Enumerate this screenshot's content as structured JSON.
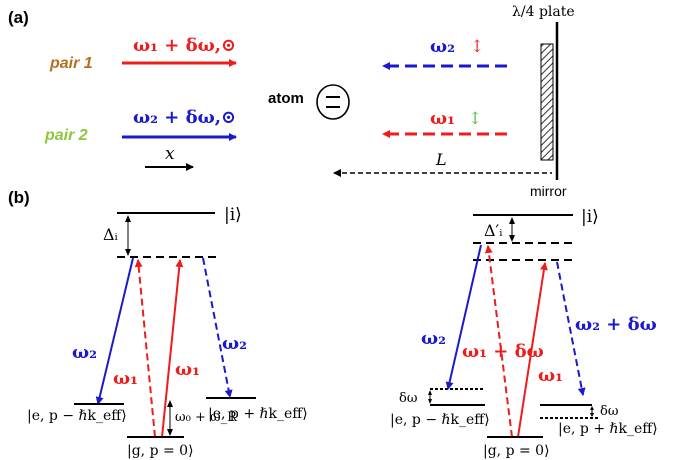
{
  "panel_a": {
    "label": "(a)",
    "pair1": {
      "label": "pair 1",
      "beam": "ω₁ + δω,⊙"
    },
    "pair2": {
      "label": "pair 2",
      "beam": "ω₂ + δω,⊙"
    },
    "x_axis": "x",
    "atom_label": "atom",
    "reflected_top": {
      "beam": "ω₂",
      "pol": "↕"
    },
    "reflected_bottom": {
      "beam": "ω₁",
      "pol": "↕"
    },
    "plate_label": "λ/4 plate",
    "mirror_label": "mirror",
    "distance_label": "L"
  },
  "panel_b": {
    "label": "(b)",
    "left": {
      "excited": "|i⟩",
      "detuning": "Δᵢ",
      "w2": "ω₂",
      "w1_dashed": "ω₁",
      "w1_solid": "ω₁",
      "w2_dashed": "ω₂",
      "state_minus": "|e, p − ℏk_eff⟩",
      "state_plus": "|e, p + ℏk_eff⟩",
      "ground": "|g, p = 0⟩",
      "recoil": "ω₀ + ω_R"
    },
    "right": {
      "excited": "|i⟩",
      "detuning": "Δ′ᵢ",
      "w2": "ω₂",
      "w1_dashed": "ω₁ + δω",
      "w1_solid": "ω₁",
      "w2_dashed": "ω₂ + δω",
      "state_minus": "|e, p − ℏk_eff⟩",
      "state_plus": "|e, p + ℏk_eff⟩",
      "ground": "|g, p = 0⟩",
      "dw_left": "δω",
      "dw_right": "δω"
    }
  },
  "colors": {
    "red": "#ee1c1c",
    "blue": "#1a1acc",
    "pair1": "#b86e1f",
    "pair2": "#8cc63e",
    "pol_top": "#e8383a",
    "pol_bottom": "#66c24a"
  }
}
